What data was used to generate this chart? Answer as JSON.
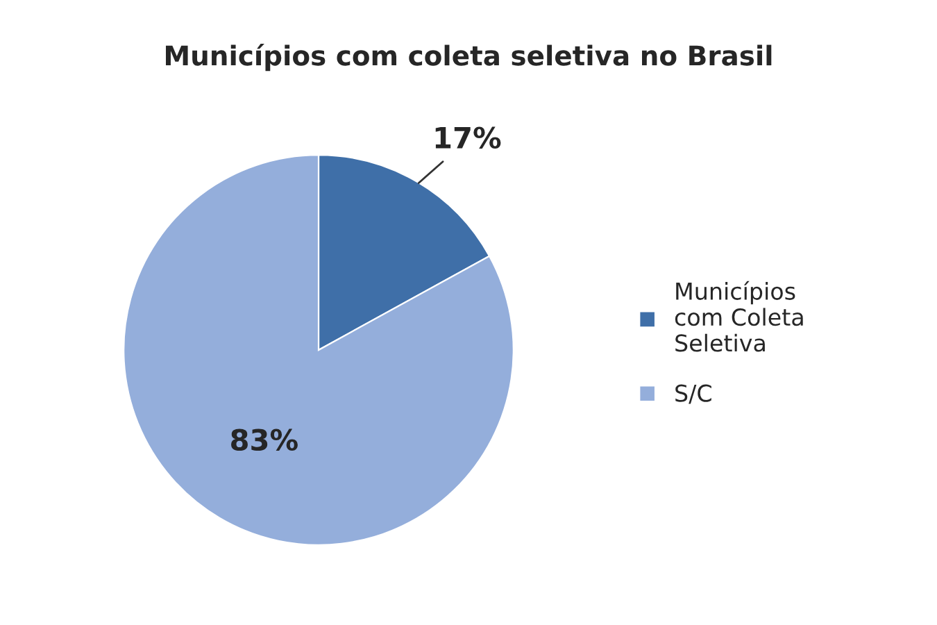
{
  "chart_data": {
    "type": "pie",
    "title": "Municípios com coleta seletiva no Brasil",
    "categories": [
      "Municípios com Coleta Seletiva",
      "S/C"
    ],
    "values": [
      17,
      83
    ],
    "colors": [
      "#3f6fa8",
      "#94aedb"
    ],
    "value_labels": [
      "17%",
      "83%"
    ],
    "legend": "right"
  }
}
